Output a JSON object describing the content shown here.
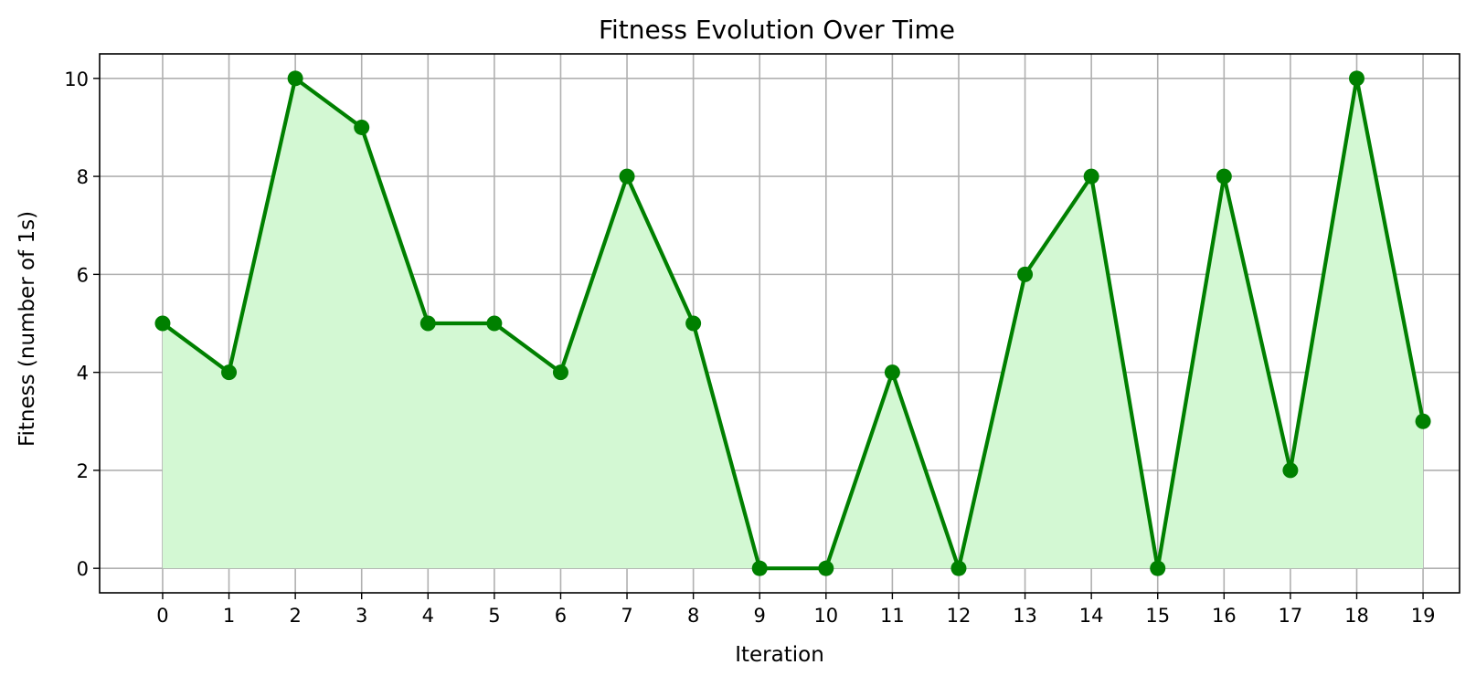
{
  "chart_data": {
    "type": "line",
    "title": "Fitness Evolution Over Time",
    "xlabel": "Iteration",
    "ylabel": "Fitness (number of 1s)",
    "x": [
      0,
      1,
      2,
      3,
      4,
      5,
      6,
      7,
      8,
      9,
      10,
      11,
      12,
      13,
      14,
      15,
      16,
      17,
      18,
      19
    ],
    "x_tick_labels": [
      "0",
      "1",
      "2",
      "3",
      "4",
      "5",
      "6",
      "7",
      "8",
      "9",
      "10",
      "11",
      "12",
      "13",
      "14",
      "15",
      "16",
      "17",
      "18",
      "19"
    ],
    "y_ticks": [
      0,
      2,
      4,
      6,
      8,
      10
    ],
    "y_tick_labels": [
      "0",
      "2",
      "4",
      "6",
      "8",
      "10"
    ],
    "xlim": [
      -0.95,
      19.55
    ],
    "ylim": [
      -0.5,
      10.5
    ],
    "grid": true,
    "series": [
      {
        "values": [
          5,
          4,
          10,
          9,
          5,
          5,
          4,
          8,
          5,
          0,
          0,
          4,
          0,
          6,
          8,
          0,
          8,
          2,
          10,
          3
        ],
        "line_color": "#008000",
        "marker": "circle",
        "fill_color": "#d3f8d3"
      }
    ]
  }
}
